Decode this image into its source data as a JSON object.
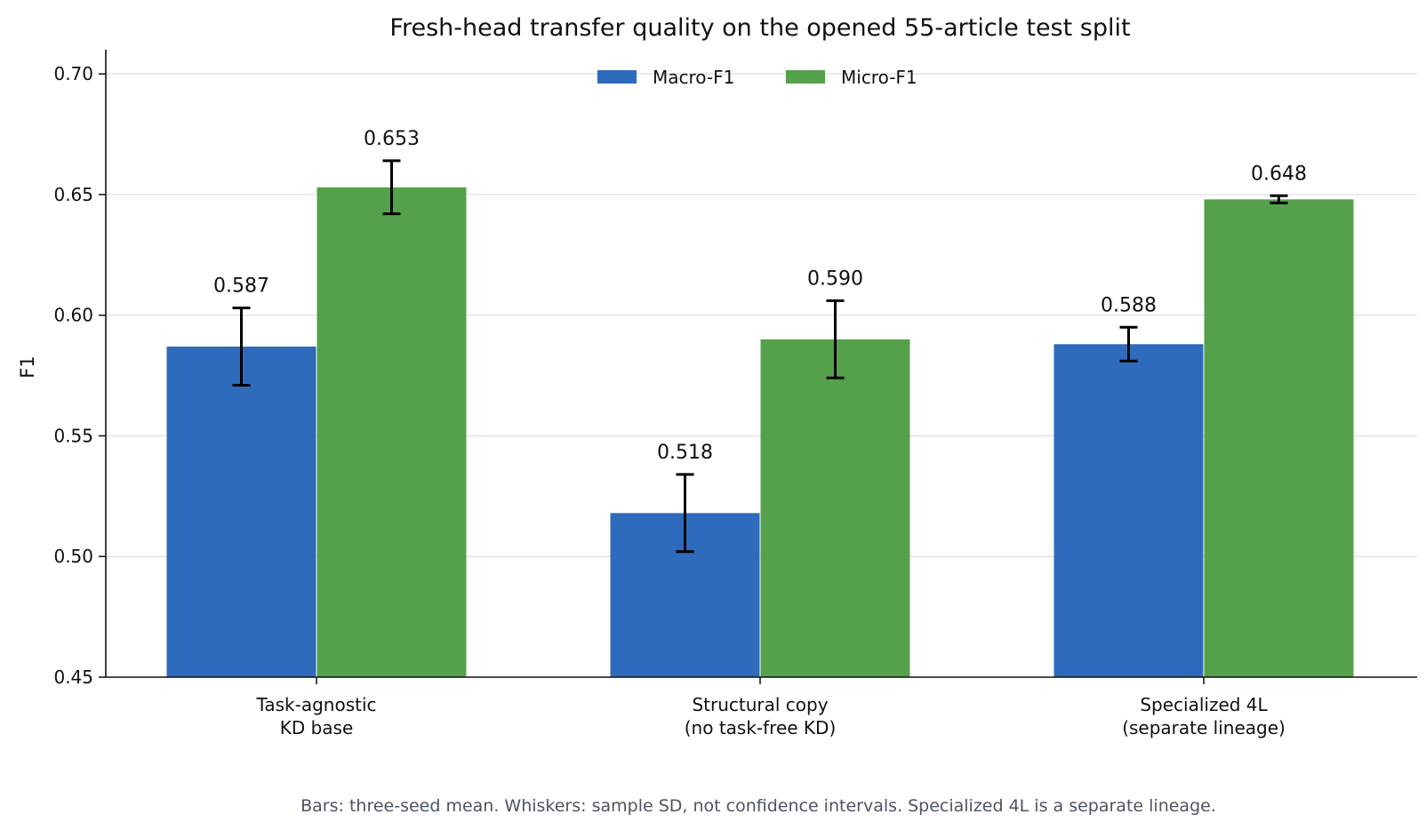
{
  "chart_data": {
    "type": "bar",
    "title": "Fresh-head transfer quality on the opened 55-article test split",
    "xlabel": "",
    "ylabel": "F1",
    "ylim": [
      0.45,
      0.71
    ],
    "yticks": [
      0.45,
      0.5,
      0.55,
      0.6,
      0.65,
      0.7
    ],
    "ytick_labels": [
      "0.45",
      "0.50",
      "0.55",
      "0.60",
      "0.65",
      "0.70"
    ],
    "grid": true,
    "legend_position": "top-center",
    "categories": [
      [
        "Task-agnostic",
        "KD base"
      ],
      [
        "Structural copy",
        "(no task-free KD)"
      ],
      [
        "Specialized 4L",
        "(separate lineage)"
      ]
    ],
    "series": [
      {
        "name": "Macro-F1",
        "color": "#2f6bbd",
        "values": [
          0.587,
          0.518,
          0.588
        ],
        "errors": [
          0.016,
          0.016,
          0.007
        ],
        "labels": [
          "0.587",
          "0.518",
          "0.588"
        ]
      },
      {
        "name": "Micro-F1",
        "color": "#55a14b",
        "values": [
          0.653,
          0.59,
          0.648
        ],
        "errors": [
          0.011,
          0.016,
          0.0015
        ],
        "labels": [
          "0.653",
          "0.590",
          "0.648"
        ]
      }
    ],
    "footnote": "Bars: three-seed mean. Whiskers: sample SD, not confidence intervals. Specialized 4L is a separate lineage."
  }
}
